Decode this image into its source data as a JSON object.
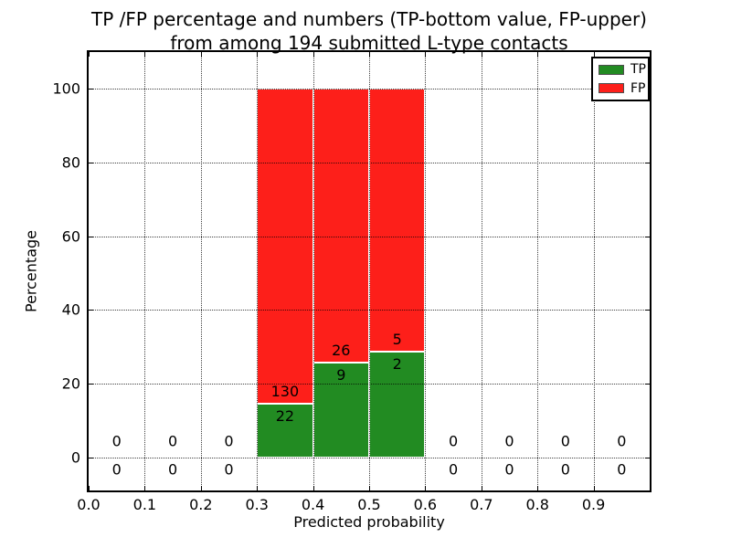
{
  "chart_data": {
    "type": "bar",
    "subtype": "stacked-percentage-histogram",
    "title_line1": "TP /FP percentage and numbers (TP-bottom value, FP-upper)",
    "title_line2": "from among 194 submitted L-type contacts",
    "xlabel": "Predicted probability",
    "ylabel": "Percentage",
    "xlim": [
      0.0,
      1.0
    ],
    "ylim": [
      -9,
      110
    ],
    "xticks": [
      "0.0",
      "0.1",
      "0.2",
      "0.3",
      "0.4",
      "0.5",
      "0.6",
      "0.7",
      "0.8",
      "0.9"
    ],
    "yticks": [
      "0",
      "20",
      "40",
      "60",
      "80",
      "100"
    ],
    "grid": "dotted",
    "annotation_note": "TP count at bottom of stack, FP count above; stacks normalized to 100%",
    "total_contacts": 194,
    "legend": {
      "position": "upper-right",
      "items": [
        {
          "label": "TP",
          "color": "#228b22"
        },
        {
          "label": "FP",
          "color": "#fd1f1a"
        }
      ]
    },
    "colors": {
      "tp": "#228b22",
      "fp": "#fd1f1a",
      "background": "#ffffff",
      "text": "#000000"
    },
    "bins": [
      {
        "range": [
          0.0,
          0.1
        ],
        "tp": 0,
        "fp": 0
      },
      {
        "range": [
          0.1,
          0.2
        ],
        "tp": 0,
        "fp": 0
      },
      {
        "range": [
          0.2,
          0.3
        ],
        "tp": 0,
        "fp": 0
      },
      {
        "range": [
          0.3,
          0.4
        ],
        "tp": 22,
        "fp": 130
      },
      {
        "range": [
          0.4,
          0.5
        ],
        "tp": 9,
        "fp": 26
      },
      {
        "range": [
          0.5,
          0.6
        ],
        "tp": 2,
        "fp": 5
      },
      {
        "range": [
          0.6,
          0.7
        ],
        "tp": 0,
        "fp": 0
      },
      {
        "range": [
          0.7,
          0.8
        ],
        "tp": 0,
        "fp": 0
      },
      {
        "range": [
          0.8,
          0.9
        ],
        "tp": 0,
        "fp": 0
      },
      {
        "range": [
          0.9,
          1.0
        ],
        "tp": 0,
        "fp": 0
      }
    ]
  }
}
